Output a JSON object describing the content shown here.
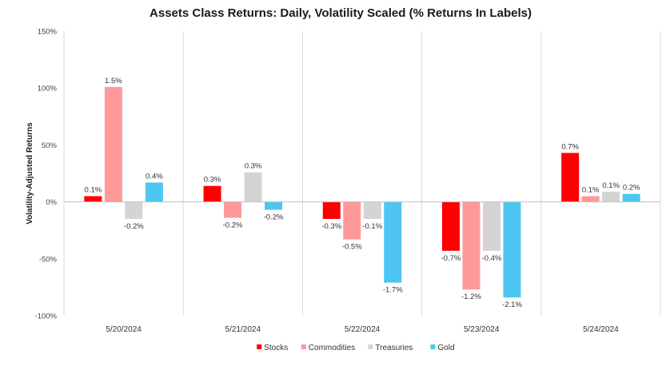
{
  "chart_data": {
    "type": "bar",
    "title": "Assets Class Returns: Daily, Volatility Scaled (% Returns In Labels)",
    "xlabel": "",
    "ylabel": "Volatility-Adjusted Returns",
    "ylim": [
      -100,
      150
    ],
    "yticks": [
      150,
      100,
      50,
      0,
      -50,
      -100
    ],
    "ytick_labels": [
      "150%",
      "100%",
      "50%",
      "0%",
      "-50%",
      "-100%"
    ],
    "categories": [
      "5/20/2024",
      "5/21/2024",
      "5/22/2024",
      "5/23/2024",
      "5/24/2024"
    ],
    "legend_position": "bottom",
    "gridlines": "vertical category separators",
    "series": [
      {
        "name": "Stocks",
        "color": "#ff0000",
        "values": [
          5,
          14,
          -15,
          -43,
          43
        ],
        "labels": [
          "0.1%",
          "0.3%",
          "-0.3%",
          "-0.7%",
          "0.7%"
        ]
      },
      {
        "name": "Commodities",
        "color": "#ff9999",
        "values": [
          101,
          -14,
          -33,
          -77,
          5
        ],
        "labels": [
          "1.5%",
          "-0.2%",
          "-0.5%",
          "-1.2%",
          "0.1%"
        ]
      },
      {
        "name": "Treasuries",
        "color": "#d4d4d4",
        "values": [
          -15,
          26,
          -15,
          -43,
          9
        ],
        "labels": [
          "-0.2%",
          "0.3%",
          "-0.1%",
          "-0.4%",
          "0.1%"
        ]
      },
      {
        "name": "Gold",
        "color": "#4dc7f2",
        "values": [
          17,
          -7,
          -71,
          -84,
          7
        ],
        "labels": [
          "0.4%",
          "-0.2%",
          "-1.7%",
          "-2.1%",
          "0.2%"
        ]
      }
    ]
  }
}
